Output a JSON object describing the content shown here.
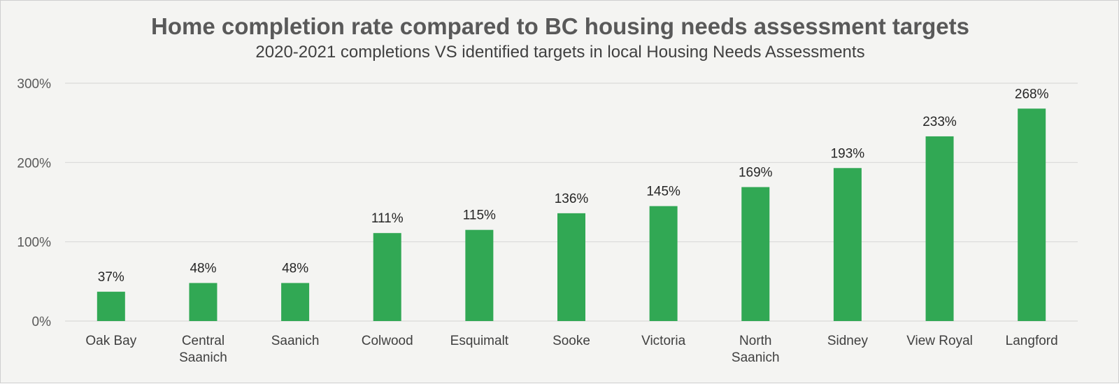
{
  "chart_data": {
    "type": "bar",
    "title": "Home completion rate compared to BC housing needs assessment targets",
    "subtitle": "2020-2021 completions VS identified targets in local Housing Needs Assessments",
    "categories": [
      [
        "Oak Bay"
      ],
      [
        "Central",
        "Saanich"
      ],
      [
        "Saanich"
      ],
      [
        "Colwood"
      ],
      [
        "Esquimalt"
      ],
      [
        "Sooke"
      ],
      [
        "Victoria"
      ],
      [
        "North",
        "Saanich"
      ],
      [
        "Sidney"
      ],
      [
        "View Royal"
      ],
      [
        "Langford"
      ]
    ],
    "values": [
      37,
      48,
      48,
      111,
      115,
      136,
      145,
      169,
      193,
      233,
      268
    ],
    "data_labels": [
      "37%",
      "48%",
      "48%",
      "111%",
      "115%",
      "136%",
      "145%",
      "169%",
      "193%",
      "233%",
      "268%"
    ],
    "yticks": [
      0,
      100,
      200,
      300
    ],
    "ytick_labels": [
      "0%",
      "100%",
      "200%",
      "300%"
    ],
    "ylim": [
      0,
      300
    ],
    "grid": true,
    "bar_color": "#31a854",
    "gridline_color": "#d9d9d9",
    "xlabel": "",
    "ylabel": ""
  }
}
